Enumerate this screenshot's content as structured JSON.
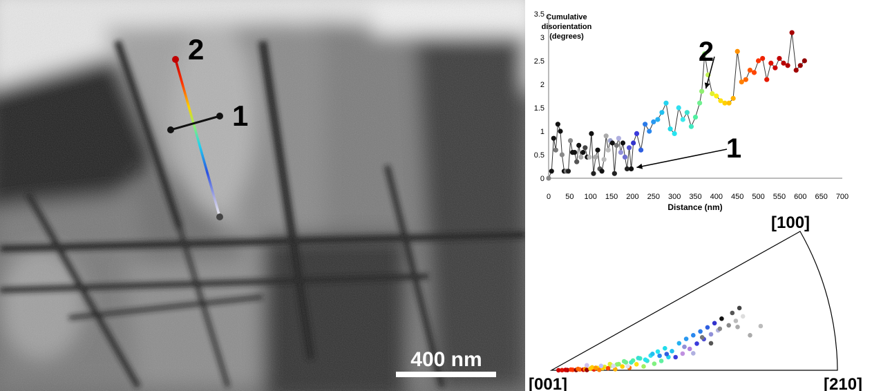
{
  "micrograph": {
    "scale_bar_label": "400 nm",
    "line1_label": "1",
    "line2_label": "2"
  },
  "chart_data": [
    {
      "type": "scatter",
      "title": "Cumulative disorientation (degrees)",
      "title_lines": [
        "Cumulative",
        "disorientation",
        "(degrees)"
      ],
      "xlabel": "Distance (nm)",
      "ylabel": "",
      "xlim": [
        0,
        700
      ],
      "ylim": [
        0,
        3.5
      ],
      "xticks": [
        0,
        50,
        100,
        150,
        200,
        250,
        300,
        350,
        400,
        450,
        500,
        550,
        600,
        650,
        700
      ],
      "yticks": [
        0,
        0.5,
        1,
        1.5,
        2,
        2.5,
        3,
        3.5
      ],
      "grid": false,
      "legend": "none",
      "annotations": [
        {
          "text": "1",
          "points_to": [
            200,
            0.2
          ]
        },
        {
          "text": "2",
          "points_to": [
            365,
            1.85
          ]
        }
      ],
      "series": [
        {
          "line": true,
          "x": [
            0,
            7,
            12,
            17,
            22,
            28,
            32,
            37,
            42,
            47,
            52,
            57,
            62,
            67,
            72,
            77,
            82,
            87,
            92,
            97,
            102,
            107,
            112,
            117,
            122,
            127,
            132,
            137,
            142,
            147,
            152,
            157,
            162,
            167,
            172,
            177,
            182,
            187,
            192,
            197,
            202,
            210,
            220,
            230,
            240,
            250,
            260,
            270,
            280,
            290,
            300,
            310,
            320,
            330,
            340,
            350,
            360,
            365,
            372,
            380,
            390,
            400,
            410,
            420,
            430,
            440,
            450,
            460,
            470,
            480,
            490,
            500,
            510,
            520,
            530,
            540,
            550,
            560,
            570,
            580,
            590,
            600,
            610
          ],
          "y": [
            0,
            0.15,
            0.85,
            0.6,
            1.15,
            1.0,
            0.5,
            0.15,
            0.15,
            0.15,
            0.8,
            0.55,
            0.55,
            0.35,
            0.7,
            0.45,
            0.55,
            0.65,
            0.45,
            0.45,
            0.95,
            0.1,
            0.45,
            0.6,
            0.2,
            0.15,
            0.4,
            0.9,
            0.6,
            0.8,
            0.75,
            0.1,
            0.7,
            0.85,
            0.55,
            0.75,
            0.45,
            0.2,
            0.65,
            0.2,
            0.75,
            0.95,
            0.6,
            1.15,
            1.0,
            1.2,
            1.25,
            1.4,
            1.6,
            1.05,
            0.95,
            1.5,
            1.25,
            1.4,
            1.1,
            1.3,
            1.6,
            1.85,
            2.65,
            2.2,
            1.8,
            1.75,
            1.65,
            1.6,
            1.6,
            1.7,
            2.7,
            2.05,
            2.1,
            2.3,
            2.25,
            2.5,
            2.55,
            2.1,
            2.45,
            2.35,
            2.55,
            2.45,
            2.4,
            3.1,
            2.3,
            2.4,
            2.5
          ],
          "colors": [
            "#888888",
            "#111111",
            "#111111",
            "#777777",
            "#111111",
            "#111111",
            "#888888",
            "#111111",
            "#777777",
            "#222222",
            "#888888",
            "#111111",
            "#111111",
            "#555555",
            "#111111",
            "#aaaaaa",
            "#111111",
            "#444444",
            "#111111",
            "#bbbbbb",
            "#111111",
            "#222222",
            "#aaaaaa",
            "#111111",
            "#555555",
            "#111111",
            "#bbbbbb",
            "#aaaaaa",
            "#bbbbbb",
            "#9aa0c8",
            "#111111",
            "#222222",
            "#777777",
            "#b0b0e0",
            "#9090d8",
            "#111111",
            "#7070d0",
            "#222222",
            "#5050d0",
            "#111111",
            "#3333cc",
            "#3a3adc",
            "#2f5fe0",
            "#2a7ae8",
            "#2a88ee",
            "#2a98f0",
            "#25b0f0",
            "#20c0f0",
            "#22d4f0",
            "#20dcea",
            "#25e4f0",
            "#30dff0",
            "#3ae8ec",
            "#38e0d0",
            "#40e8c0",
            "#50f0a0",
            "#70f090",
            "#90f070",
            "#90ee70",
            "#c0f050",
            "#e0f030",
            "#ffee10",
            "#ffe010",
            "#ffd000",
            "#ffc000",
            "#ffb000",
            "#ff9000",
            "#ff8000",
            "#ff6600",
            "#ff5500",
            "#ff4400",
            "#ff3300",
            "#ee2200",
            "#e61a00",
            "#dd1100",
            "#cc0000",
            "#c00000",
            "#b80000",
            "#b00000",
            "#a80000",
            "#a00000",
            "#980000",
            "#900000"
          ]
        }
      ]
    },
    {
      "type": "scatter",
      "title": "",
      "xlabel": "",
      "ylabel": "",
      "corner_labels": {
        "origin": "[001]",
        "right": "[210]",
        "top": "[100]"
      },
      "grid": false,
      "legend": "none",
      "series": [
        {
          "x": [
            0.04,
            0.06,
            0.09,
            0.12,
            0.14,
            0.16,
            0.18,
            0.19,
            0.2,
            0.22,
            0.24,
            0.26,
            0.27,
            0.3,
            0.32,
            0.34,
            0.36,
            0.38,
            0.4,
            0.42,
            0.44,
            0.46,
            0.48,
            0.5,
            0.52,
            0.54,
            0.56,
            0.58,
            0.6,
            0.62,
            0.64,
            0.66,
            0.68,
            0.72,
            0.74,
            0.76,
            0.78,
            0.8,
            0.82,
            0.84,
            0.86,
            0.88,
            0.9,
            0.92,
            0.94,
            0.96,
            1.0,
            1.02,
            1.04,
            1.06,
            1.08,
            1.12,
            1.18,
            0.08,
            0.11,
            0.15,
            0.23,
            0.25,
            0.29,
            0.33,
            0.37,
            0.41,
            0.45,
            0.49,
            0.53,
            0.57,
            0.61,
            0.65,
            0.7,
            0.75,
            0.8,
            0.85,
            0.9,
            0.95,
            1.05,
            0.2,
            0.28,
            0.35,
            0.43
          ],
          "y": [
            0.02,
            0.03,
            0.04,
            0.06,
            0.03,
            0.08,
            0.05,
            0.1,
            0.02,
            0.12,
            0.06,
            0.14,
            0.03,
            0.18,
            0.1,
            0.22,
            0.05,
            0.26,
            0.15,
            0.3,
            0.09,
            0.34,
            0.2,
            0.38,
            0.12,
            0.28,
            0.42,
            0.18,
            0.5,
            0.24,
            0.55,
            0.32,
            0.45,
            0.6,
            0.36,
            0.66,
            0.44,
            0.7,
            0.52,
            0.74,
            0.58,
            0.78,
            0.64,
            0.82,
            0.68,
            0.86,
            0.72,
            0.9,
            0.76,
            0.94,
            0.8,
            0.5,
            0.6,
            0.08,
            0.1,
            0.14,
            0.2,
            0.16,
            0.12,
            0.3,
            0.25,
            0.35,
            0.28,
            0.4,
            0.32,
            0.46,
            0.38,
            0.4,
            0.3,
            0.5,
            0.34,
            0.62,
            0.48,
            0.7,
            0.66,
            0.4,
            0.25,
            0.2,
            0.15
          ],
          "colors": [
            "#cc0000",
            "#dd1100",
            "#aa0000",
            "#ff3300",
            "#880000",
            "#ff6600",
            "#cc0000",
            "#ff9900",
            "#990000",
            "#ffcc00",
            "#ee2200",
            "#ffee00",
            "#ff8000",
            "#e0f030",
            "#ff4400",
            "#c0f050",
            "#ffb000",
            "#90f070",
            "#ffd000",
            "#70f090",
            "#ff7000",
            "#50f0a0",
            "#ffe010",
            "#40e8c0",
            "#a0f060",
            "#38e0d0",
            "#30dff0",
            "#80f080",
            "#25e4f0",
            "#60f0a0",
            "#20dcea",
            "#22d4f0",
            "#20c0f0",
            "#25b0f0",
            "#c090e0",
            "#2a98f0",
            "#b080e0",
            "#2a88ee",
            "#3a3adc",
            "#2a7ae8",
            "#5050d0",
            "#2f5fe0",
            "#9090d8",
            "#3333cc",
            "#b0b0e0",
            "#111111",
            "#888888",
            "#555555",
            "#bbbbbb",
            "#444444",
            "#dddddd",
            "#aaaaaa",
            "#bbbbbb",
            "#cc0000",
            "#ff3300",
            "#ff6600",
            "#ffcc00",
            "#ff9900",
            "#ffd000",
            "#e0f030",
            "#90f070",
            "#70f090",
            "#40e8c0",
            "#38e0d0",
            "#25e4f0",
            "#20c0f0",
            "#2a88ee",
            "#2f5fe0",
            "#3a3adc",
            "#9090d8",
            "#b0b0e0",
            "#777777",
            "#555555",
            "#888888",
            "#aaaaaa",
            "#d0c0f0",
            "#c0c0ff",
            "#d8d8f0",
            "#e0e0f0"
          ]
        }
      ]
    }
  ]
}
